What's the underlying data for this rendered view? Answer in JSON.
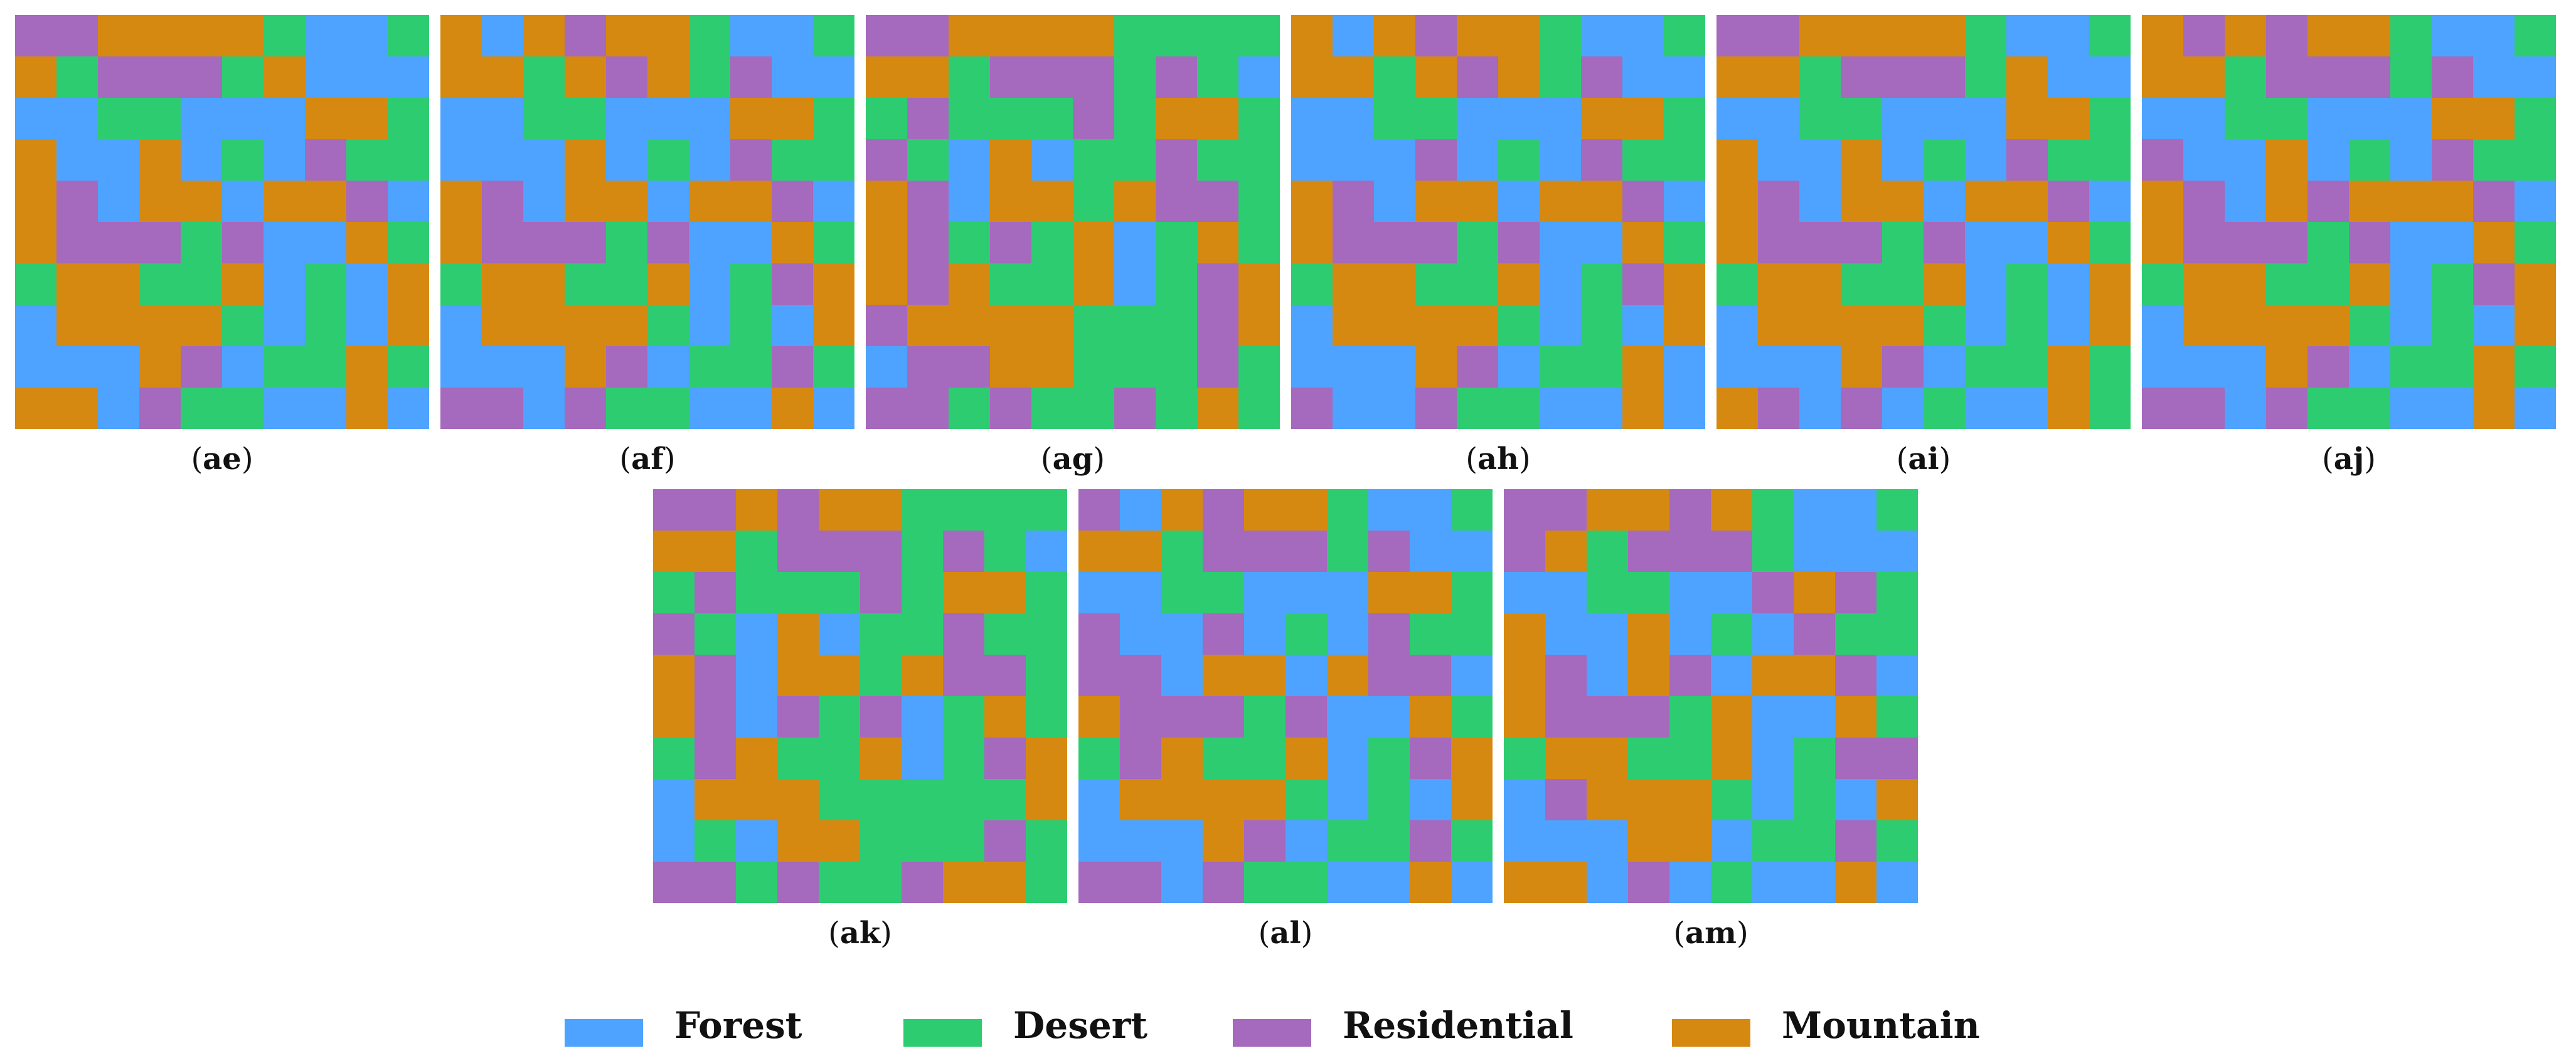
{
  "colors": {
    "F": "#4da3ff",
    "D": "#2ecc71",
    "R": "#a569bd",
    "M": "#d68910"
  },
  "legend": [
    {
      "key": "F",
      "label": "Forest"
    },
    {
      "key": "D",
      "label": "Desert"
    },
    {
      "key": "R",
      "label": "Residential"
    },
    {
      "key": "M",
      "label": "Mountain"
    }
  ],
  "panels": [
    {
      "id": "ae",
      "grid": [
        "RRMMMMDFFD",
        "MDRRRDMFFF",
        "FFDDFFFMMD",
        "MFFMFDFRDD",
        "MRFMMFMMRF",
        "MRRRDRFFMD",
        "DMMDDMFDFM",
        "FMMMMDFDFM",
        "FFFMRFDDMD",
        "MMFRDDFFMF"
      ]
    },
    {
      "id": "af",
      "grid": [
        "MFMRMMDFFD",
        "MMDMRMDRFF",
        "FFDDFFFMMD",
        "FFFMFDFRDD",
        "MRFMMFMMRF",
        "MRRRDRFFMD",
        "DMMDDMFDRM",
        "FMMMMDFDFM",
        "FFFMRFDDRD",
        "RRFRDDFFMF"
      ]
    },
    {
      "id": "ag",
      "grid": [
        "RRMMMMDDDD",
        "MMDRRRDRDF",
        "DRDDDRDMMD",
        "RDFMFDDRDD",
        "MRFMMDMRRD",
        "MRDRDMFDMD",
        "MRMDDMFDRM",
        "RMMMMDDDRM",
        "FRRMMDDDRD",
        "RRDRDDRDMD"
      ]
    },
    {
      "id": "ah",
      "grid": [
        "MFMRMMDFFD",
        "MMDMRMDRFF",
        "FFDDFFFMMD",
        "FFFRFDFRDD",
        "MRFMMFMMRF",
        "MRRRDRFFMD",
        "DMMDDMFDRM",
        "FMMMMDFDFM",
        "FFFMRFDDMF",
        "RFFRDDFFMF"
      ]
    },
    {
      "id": "ai",
      "grid": [
        "RRMMMMDFFD",
        "MMDRRRDMFF",
        "FFDDFFFMMD",
        "MFFMFDFRDD",
        "MRFMMFMMRF",
        "MRRRDRFFMD",
        "DMMDDMFDFM",
        "FMMMMDFDFM",
        "FFFMRFDDMD",
        "MRFRFDFFMD"
      ]
    },
    {
      "id": "aj",
      "grid": [
        "MRMRMMDFFD",
        "MMDRRRDRFF",
        "FFDDFFFMMD",
        "RFFMFDFRDD",
        "MRFMRMMMRF",
        "MRRRDRFFMD",
        "DMMDDMFDRM",
        "FMMMMDFDFM",
        "FFFMRFDDMD",
        "RRFRDDFFMF"
      ]
    },
    {
      "id": "ak",
      "grid": [
        "RRMRMMDDDD",
        "MMDRRRDRDF",
        "DRDDDRDMMD",
        "RDFMFDDRDD",
        "MRFMMDMRRD",
        "MRFRDRFDMD",
        "DRMDDMFDRM",
        "FMMMDDDDDM",
        "FDFMMDDDRD",
        "RRDRDDRMMD"
      ]
    },
    {
      "id": "al",
      "grid": [
        "RFMRMMDFFD",
        "MMDRRRDRFF",
        "FFDDFFFMMD",
        "RFFRFDFRDD",
        "RRFMMFMRRF",
        "MRRRDRFFMD",
        "DRMDDMFDRM",
        "FMMMMDFDFM",
        "FFFMRFDDRD",
        "RRFRDDFFMF"
      ]
    },
    {
      "id": "am",
      "grid": [
        "RRMMRMDFFD",
        "RMDRRRDFFF",
        "FFDDFFRMRD",
        "MFFMFDFRDD",
        "MRFMRFMMRF",
        "MRRRDMFFMD",
        "DMMDDMFDRR",
        "FRMMMDFDFM",
        "FFFMMFDDRD",
        "MMFRFDFFMF"
      ]
    }
  ]
}
